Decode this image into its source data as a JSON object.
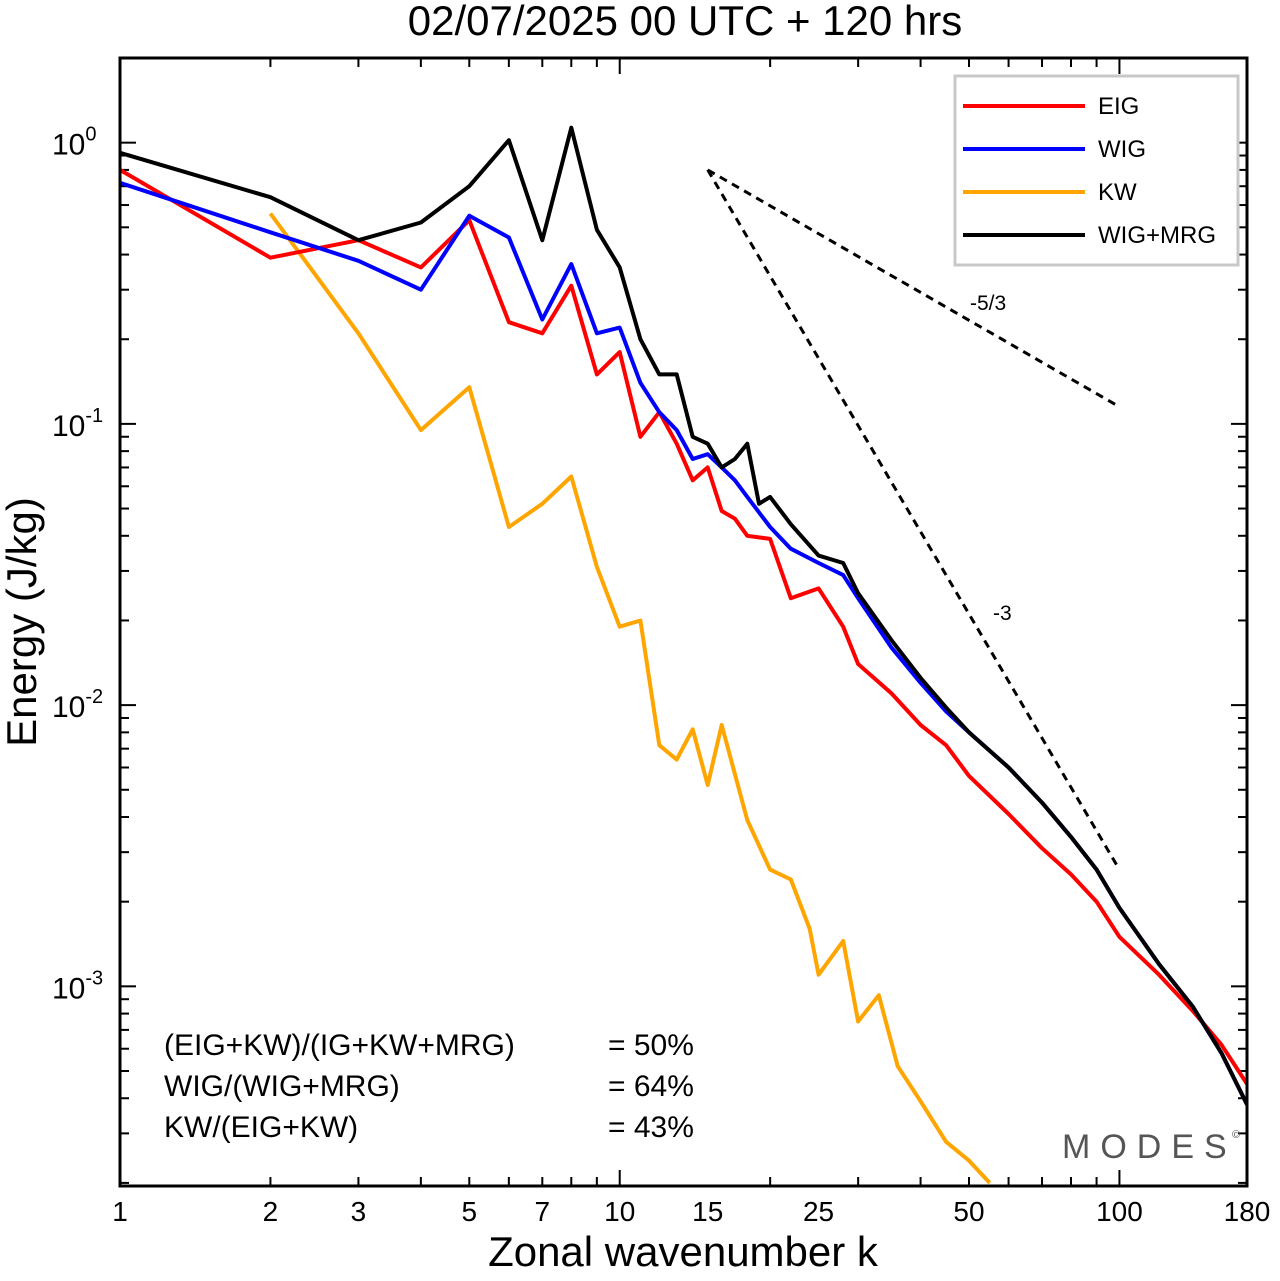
{
  "chart_data": {
    "type": "line",
    "title": "02/07/2025  00 UTC  + 120 hrs",
    "xlabel": "Zonal wavenumber k",
    "ylabel": "Energy (J/kg)",
    "xscale": "log",
    "yscale": "log",
    "xlim": [
      1,
      180
    ],
    "ylim": [
      0.000195,
      2.0
    ],
    "xticks": [
      "1",
      "2",
      "3",
      "5",
      "7",
      "10",
      "15",
      "25",
      "50",
      "100",
      "180"
    ],
    "yticks": [
      {
        "base": "10",
        "exp": "0",
        "value": 1
      },
      {
        "base": "10",
        "exp": "-1",
        "value": 0.1
      },
      {
        "base": "10",
        "exp": "-2",
        "value": 0.01
      },
      {
        "base": "10",
        "exp": "-3",
        "value": 0.001
      }
    ],
    "grid": false,
    "legend_position": "top-right",
    "series": [
      {
        "name": "EIG",
        "color": "#ff0000",
        "points": [
          [
            1,
            0.8
          ],
          [
            2,
            0.39
          ],
          [
            3,
            0.45
          ],
          [
            4,
            0.36
          ],
          [
            5,
            0.53
          ],
          [
            6,
            0.23
          ],
          [
            7,
            0.21
          ],
          [
            8,
            0.31
          ],
          [
            9,
            0.15
          ],
          [
            10,
            0.18
          ],
          [
            11,
            0.09
          ],
          [
            12,
            0.11
          ],
          [
            13,
            0.085
          ],
          [
            14,
            0.063
          ],
          [
            15,
            0.07
          ],
          [
            16,
            0.049
          ],
          [
            17,
            0.046
          ],
          [
            18,
            0.04
          ],
          [
            20,
            0.039
          ],
          [
            22,
            0.024
          ],
          [
            25,
            0.026
          ],
          [
            28,
            0.019
          ],
          [
            30,
            0.014
          ],
          [
            35,
            0.011
          ],
          [
            40,
            0.0085
          ],
          [
            45,
            0.0072
          ],
          [
            50,
            0.0056
          ],
          [
            60,
            0.0041
          ],
          [
            70,
            0.0031
          ],
          [
            80,
            0.0025
          ],
          [
            90,
            0.002
          ],
          [
            100,
            0.0015
          ],
          [
            120,
            0.0011
          ],
          [
            140,
            0.00082
          ],
          [
            160,
            0.00062
          ],
          [
            180,
            0.00045
          ]
        ]
      },
      {
        "name": "WIG",
        "color": "#0000ff",
        "points": [
          [
            1,
            0.72
          ],
          [
            2,
            0.48
          ],
          [
            3,
            0.38
          ],
          [
            4,
            0.3
          ],
          [
            5,
            0.55
          ],
          [
            6,
            0.46
          ],
          [
            7,
            0.235
          ],
          [
            8,
            0.37
          ],
          [
            9,
            0.21
          ],
          [
            10,
            0.22
          ],
          [
            11,
            0.14
          ],
          [
            12,
            0.11
          ],
          [
            13,
            0.095
          ],
          [
            14,
            0.075
          ],
          [
            15,
            0.078
          ],
          [
            16,
            0.07
          ],
          [
            17,
            0.063
          ],
          [
            18,
            0.055
          ],
          [
            20,
            0.043
          ],
          [
            22,
            0.036
          ],
          [
            25,
            0.032
          ],
          [
            28,
            0.029
          ],
          [
            30,
            0.024
          ],
          [
            35,
            0.016
          ],
          [
            40,
            0.012
          ],
          [
            45,
            0.0095
          ],
          [
            50,
            0.008
          ],
          [
            60,
            0.006
          ],
          [
            70,
            0.0045
          ],
          [
            80,
            0.0034
          ],
          [
            90,
            0.0026
          ],
          [
            100,
            0.0019
          ],
          [
            120,
            0.0012
          ],
          [
            140,
            0.00085
          ],
          [
            160,
            0.00058
          ],
          [
            180,
            0.00038
          ]
        ]
      },
      {
        "name": "KW",
        "color": "#ffa500",
        "points": [
          [
            2,
            0.56
          ],
          [
            3,
            0.21
          ],
          [
            4,
            0.095
          ],
          [
            5,
            0.135
          ],
          [
            6,
            0.043
          ],
          [
            7,
            0.052
          ],
          [
            8,
            0.065
          ],
          [
            9,
            0.031
          ],
          [
            10,
            0.019
          ],
          [
            11,
            0.02
          ],
          [
            12,
            0.0072
          ],
          [
            13,
            0.0064
          ],
          [
            14,
            0.0082
          ],
          [
            15,
            0.0052
          ],
          [
            16,
            0.0085
          ],
          [
            18,
            0.0039
          ],
          [
            20,
            0.0026
          ],
          [
            22,
            0.0024
          ],
          [
            24,
            0.0016
          ],
          [
            25,
            0.0011
          ],
          [
            28,
            0.00145
          ],
          [
            30,
            0.00075
          ],
          [
            33,
            0.00093
          ],
          [
            36,
            0.00052
          ],
          [
            40,
            0.00039
          ],
          [
            45,
            0.00028
          ],
          [
            50,
            0.00024
          ],
          [
            55,
            0.0002
          ]
        ]
      },
      {
        "name": "WIG+MRG",
        "color": "#000000",
        "points": [
          [
            1,
            0.92
          ],
          [
            2,
            0.64
          ],
          [
            3,
            0.45
          ],
          [
            4,
            0.52
          ],
          [
            5,
            0.7
          ],
          [
            6,
            1.02
          ],
          [
            7,
            0.45
          ],
          [
            8,
            1.13
          ],
          [
            9,
            0.49
          ],
          [
            10,
            0.36
          ],
          [
            11,
            0.2
          ],
          [
            12,
            0.15
          ],
          [
            13,
            0.15
          ],
          [
            14,
            0.09
          ],
          [
            15,
            0.085
          ],
          [
            16,
            0.07
          ],
          [
            17,
            0.075
          ],
          [
            18,
            0.085
          ],
          [
            19,
            0.052
          ],
          [
            20,
            0.055
          ],
          [
            22,
            0.044
          ],
          [
            25,
            0.034
          ],
          [
            28,
            0.032
          ],
          [
            30,
            0.025
          ],
          [
            35,
            0.017
          ],
          [
            40,
            0.0125
          ],
          [
            45,
            0.0098
          ],
          [
            50,
            0.008
          ],
          [
            60,
            0.006
          ],
          [
            70,
            0.0045
          ],
          [
            80,
            0.0034
          ],
          [
            90,
            0.0026
          ],
          [
            100,
            0.0019
          ],
          [
            120,
            0.0012
          ],
          [
            140,
            0.00085
          ],
          [
            160,
            0.00058
          ],
          [
            180,
            0.00038
          ]
        ]
      }
    ],
    "reference_slopes": [
      {
        "label": "-5/3",
        "points": [
          [
            15,
            0.8
          ],
          [
            100,
            0.115
          ]
        ]
      },
      {
        "label": "-3",
        "points": [
          [
            15,
            0.8
          ],
          [
            100,
            0.0026
          ]
        ]
      }
    ],
    "annotations": [
      {
        "label": "(EIG+KW)/(IG+KW+MRG)",
        "value": "= 50%"
      },
      {
        "label": "WIG/(WIG+MRG)",
        "value": "= 64%"
      },
      {
        "label": "KW/(EIG+KW)",
        "value": "= 43%"
      }
    ],
    "watermark": "MODES",
    "watermark_mark": "©"
  }
}
